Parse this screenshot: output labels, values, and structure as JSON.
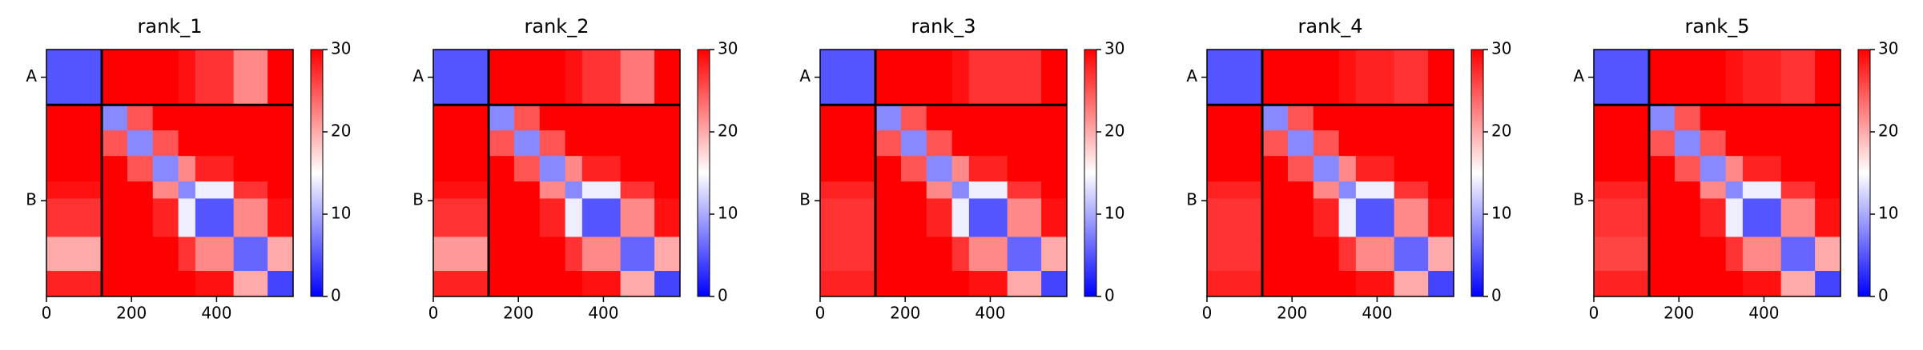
{
  "chart_data": [
    {
      "type": "heatmap",
      "title": "rank_1",
      "bins": [
        0,
        130,
        190,
        250,
        310,
        350,
        440,
        520,
        580
      ],
      "matrix": [
        [
          5,
          30,
          30,
          30,
          29,
          27,
          22,
          30
        ],
        [
          30,
          8,
          25,
          30,
          30,
          30,
          30,
          30
        ],
        [
          30,
          25,
          8,
          25,
          30,
          30,
          30,
          30
        ],
        [
          30,
          30,
          25,
          8,
          22,
          28,
          30,
          30
        ],
        [
          29,
          30,
          30,
          22,
          8,
          14,
          27,
          30
        ],
        [
          27,
          30,
          30,
          28,
          14,
          5,
          22,
          29
        ],
        [
          20,
          30,
          30,
          30,
          27,
          22,
          6,
          20
        ],
        [
          28,
          30,
          30,
          30,
          30,
          29,
          20,
          4
        ]
      ],
      "xlim": [
        0,
        580
      ],
      "xticks": [
        0,
        200,
        400
      ],
      "ylim": [
        580,
        0
      ],
      "yticks": [
        {
          "value": 65,
          "label": "A"
        },
        {
          "value": 355,
          "label": "B"
        }
      ],
      "chain_breaks": [
        130
      ],
      "colorbar": {
        "lim": [
          0,
          30
        ],
        "ticks": [
          0,
          10,
          20,
          30
        ],
        "colormap": "bwr"
      }
    },
    {
      "type": "heatmap",
      "title": "rank_2",
      "bins": [
        0,
        130,
        190,
        250,
        310,
        350,
        440,
        520,
        580
      ],
      "matrix": [
        [
          5,
          30,
          30,
          30,
          29,
          27,
          23,
          30
        ],
        [
          30,
          8,
          25,
          30,
          30,
          30,
          30,
          30
        ],
        [
          30,
          25,
          8,
          25,
          30,
          30,
          30,
          30
        ],
        [
          30,
          30,
          25,
          8,
          22,
          28,
          30,
          30
        ],
        [
          29,
          30,
          30,
          22,
          8,
          14,
          27,
          30
        ],
        [
          27,
          30,
          30,
          28,
          14,
          5,
          22,
          29
        ],
        [
          21,
          30,
          30,
          30,
          27,
          22,
          6,
          20
        ],
        [
          28,
          30,
          30,
          30,
          30,
          29,
          20,
          4
        ]
      ],
      "xlim": [
        0,
        580
      ],
      "xticks": [
        0,
        200,
        400
      ],
      "ylim": [
        580,
        0
      ],
      "yticks": [
        {
          "value": 65,
          "label": "A"
        },
        {
          "value": 355,
          "label": "B"
        }
      ],
      "chain_breaks": [
        130
      ],
      "colorbar": {
        "lim": [
          0,
          30
        ],
        "ticks": [
          0,
          10,
          20,
          30
        ],
        "colormap": "bwr"
      }
    },
    {
      "type": "heatmap",
      "title": "rank_3",
      "bins": [
        0,
        130,
        190,
        250,
        310,
        350,
        440,
        520,
        580
      ],
      "matrix": [
        [
          5,
          30,
          30,
          30,
          29,
          27,
          27,
          30
        ],
        [
          30,
          8,
          25,
          30,
          30,
          30,
          30,
          30
        ],
        [
          30,
          25,
          8,
          25,
          30,
          30,
          30,
          30
        ],
        [
          30,
          30,
          25,
          8,
          22,
          28,
          30,
          30
        ],
        [
          28,
          30,
          30,
          22,
          8,
          14,
          27,
          30
        ],
        [
          27,
          30,
          30,
          28,
          14,
          5,
          22,
          29
        ],
        [
          27,
          30,
          30,
          30,
          27,
          22,
          6,
          20
        ],
        [
          28,
          30,
          30,
          30,
          30,
          29,
          20,
          4
        ]
      ],
      "xlim": [
        0,
        580
      ],
      "xticks": [
        0,
        200,
        400
      ],
      "ylim": [
        580,
        0
      ],
      "yticks": [
        {
          "value": 65,
          "label": "A"
        },
        {
          "value": 355,
          "label": "B"
        }
      ],
      "chain_breaks": [
        130
      ],
      "colorbar": {
        "lim": [
          0,
          30
        ],
        "ticks": [
          0,
          10,
          20,
          30
        ],
        "colormap": "bwr"
      }
    },
    {
      "type": "heatmap",
      "title": "rank_4",
      "bins": [
        0,
        130,
        190,
        250,
        310,
        350,
        440,
        520,
        580
      ],
      "matrix": [
        [
          5,
          30,
          30,
          30,
          29,
          28,
          27,
          30
        ],
        [
          30,
          8,
          25,
          30,
          30,
          30,
          30,
          30
        ],
        [
          30,
          25,
          8,
          25,
          30,
          30,
          30,
          30
        ],
        [
          30,
          30,
          25,
          8,
          22,
          28,
          30,
          30
        ],
        [
          28,
          30,
          30,
          22,
          8,
          14,
          27,
          30
        ],
        [
          27,
          30,
          30,
          28,
          14,
          5,
          22,
          29
        ],
        [
          27,
          30,
          30,
          30,
          27,
          22,
          6,
          20
        ],
        [
          28,
          30,
          30,
          30,
          30,
          29,
          20,
          4
        ]
      ],
      "xlim": [
        0,
        580
      ],
      "xticks": [
        0,
        200,
        400
      ],
      "ylim": [
        580,
        0
      ],
      "yticks": [
        {
          "value": 65,
          "label": "A"
        },
        {
          "value": 355,
          "label": "B"
        }
      ],
      "chain_breaks": [
        130
      ],
      "colorbar": {
        "lim": [
          0,
          30
        ],
        "ticks": [
          0,
          10,
          20,
          30
        ],
        "colormap": "bwr"
      }
    },
    {
      "type": "heatmap",
      "title": "rank_5",
      "bins": [
        0,
        130,
        190,
        250,
        310,
        350,
        440,
        520,
        580
      ],
      "matrix": [
        [
          5,
          30,
          30,
          30,
          29,
          28,
          27,
          30
        ],
        [
          30,
          8,
          25,
          30,
          30,
          30,
          30,
          30
        ],
        [
          30,
          25,
          8,
          25,
          30,
          30,
          30,
          30
        ],
        [
          30,
          30,
          25,
          8,
          22,
          28,
          30,
          30
        ],
        [
          28,
          30,
          30,
          22,
          8,
          14,
          27,
          30
        ],
        [
          27,
          30,
          30,
          28,
          14,
          5,
          22,
          29
        ],
        [
          26,
          30,
          30,
          30,
          27,
          22,
          6,
          20
        ],
        [
          28,
          30,
          30,
          30,
          30,
          29,
          20,
          4
        ]
      ],
      "xlim": [
        0,
        580
      ],
      "xticks": [
        0,
        200,
        400
      ],
      "ylim": [
        580,
        0
      ],
      "yticks": [
        {
          "value": 65,
          "label": "A"
        },
        {
          "value": 355,
          "label": "B"
        }
      ],
      "chain_breaks": [
        130
      ],
      "colorbar": {
        "lim": [
          0,
          30
        ],
        "ticks": [
          0,
          10,
          20,
          30
        ],
        "colormap": "bwr"
      }
    }
  ]
}
